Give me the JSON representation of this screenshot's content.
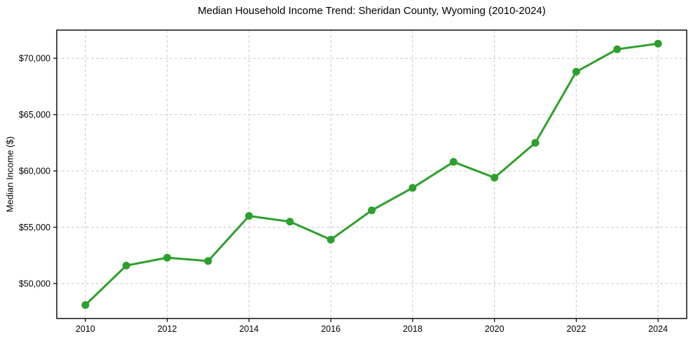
{
  "chart_data": {
    "type": "line",
    "title": "Median Household Income Trend: Sheridan County, Wyoming (2010-2024)",
    "xlabel": "",
    "ylabel": "Median Income ($)",
    "x": [
      2010,
      2011,
      2012,
      2013,
      2014,
      2015,
      2016,
      2017,
      2018,
      2019,
      2020,
      2021,
      2022,
      2023,
      2024
    ],
    "series": [
      {
        "name": "Median Household Income",
        "values": [
          48100,
          51600,
          52300,
          52000,
          56000,
          55500,
          53900,
          56500,
          58500,
          60800,
          59400,
          62500,
          68800,
          70800,
          71300
        ]
      }
    ],
    "x_ticks": [
      2010,
      2012,
      2014,
      2016,
      2018,
      2020,
      2022,
      2024
    ],
    "x_tick_labels": [
      "2010",
      "2012",
      "2014",
      "2016",
      "2018",
      "2020",
      "2022",
      "2024"
    ],
    "y_ticks": [
      50000,
      55000,
      60000,
      65000,
      70000
    ],
    "y_tick_labels": [
      "$50,000",
      "$55,000",
      "$60,000",
      "$65,000",
      "$70,000"
    ],
    "xlim": [
      2009.3,
      2024.7
    ],
    "ylim": [
      46900,
      72500
    ],
    "grid": true,
    "grid_style": "dashed",
    "legend": "none",
    "marker": "circle",
    "colors": {
      "line": "#2ca02c",
      "marker": "#2ca02c",
      "grid": "#cccccc",
      "axis_border": "#000000",
      "text": "#000000",
      "background": "#ffffff"
    }
  }
}
